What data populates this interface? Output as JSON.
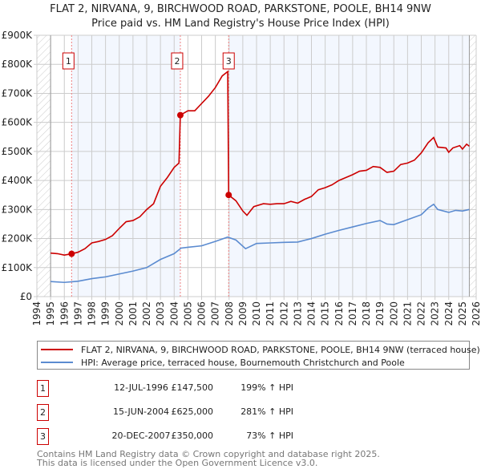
{
  "chart_data": {
    "type": "line",
    "title": "FLAT 2, NIRVANA, 9, BIRCHWOOD ROAD, PARKSTONE, POOLE, BH14 9NW",
    "subtitle": "Price paid vs. HM Land Registry's House Price Index (HPI)",
    "xlim": [
      1994,
      2026
    ],
    "ylim": [
      0,
      900000
    ],
    "x_ticks": [
      "1994",
      "1995",
      "1996",
      "1997",
      "1998",
      "1999",
      "2000",
      "2001",
      "2002",
      "2003",
      "2004",
      "2005",
      "2006",
      "2007",
      "2008",
      "2009",
      "2010",
      "2011",
      "2012",
      "2013",
      "2014",
      "2015",
      "2016",
      "2017",
      "2018",
      "2019",
      "2020",
      "2021",
      "2022",
      "2023",
      "2024",
      "2025",
      "2026"
    ],
    "y_ticks": [
      {
        "v": 0,
        "label": "£0"
      },
      {
        "v": 100000,
        "label": "£100K"
      },
      {
        "v": 200000,
        "label": "£200K"
      },
      {
        "v": 300000,
        "label": "£300K"
      },
      {
        "v": 400000,
        "label": "£400K"
      },
      {
        "v": 500000,
        "label": "£500K"
      },
      {
        "v": 600000,
        "label": "£600K"
      },
      {
        "v": 700000,
        "label": "£700K"
      },
      {
        "v": 800000,
        "label": "£800K"
      },
      {
        "v": 900000,
        "label": "£900K"
      }
    ],
    "grid": true,
    "series": [
      {
        "name": "FLAT 2, NIRVANA, 9, BIRCHWOOD ROAD, PARKSTONE, POOLE, BH14 9NW (terraced house)",
        "color": "#cc0000",
        "x": [
          1995,
          1995.5,
          1996,
          1996.53,
          1997,
          1997.5,
          1998,
          1998.5,
          1999,
          1999.5,
          2000,
          2000.5,
          2001,
          2001.5,
          2002,
          2002.5,
          2003,
          2003.5,
          2004,
          2004.35,
          2004.45,
          2005,
          2005.5,
          2006,
          2006.5,
          2007,
          2007.5,
          2007.9,
          2007.97,
          2008.5,
          2009,
          2009.3,
          2009.8,
          2010.5,
          2011,
          2011.5,
          2012,
          2012.5,
          2013,
          2013.5,
          2014,
          2014.5,
          2015,
          2015.5,
          2016,
          2016.5,
          2017,
          2017.5,
          2018,
          2018.5,
          2019,
          2019.5,
          2020,
          2020.5,
          2021,
          2021.5,
          2022,
          2022.5,
          2022.9,
          2023.2,
          2023.8,
          2024,
          2024.3,
          2024.8,
          2025,
          2025.3,
          2025.5
        ],
        "y": [
          150000,
          148000,
          143000,
          147500,
          153000,
          165000,
          185000,
          190000,
          197000,
          210000,
          235000,
          258000,
          262000,
          275000,
          300000,
          320000,
          380000,
          410000,
          445000,
          460000,
          625000,
          640000,
          640000,
          665000,
          690000,
          720000,
          760000,
          775000,
          350000,
          330000,
          295000,
          280000,
          310000,
          320000,
          318000,
          320000,
          320000,
          328000,
          322000,
          335000,
          345000,
          368000,
          375000,
          385000,
          400000,
          410000,
          420000,
          432000,
          435000,
          448000,
          445000,
          428000,
          432000,
          455000,
          460000,
          470000,
          495000,
          530000,
          548000,
          515000,
          512000,
          497000,
          512000,
          520000,
          508000,
          525000,
          518000
        ]
      },
      {
        "name": "HPI: Average price, terraced house, Bournemouth Christchurch and Poole",
        "color": "#5b8bd0",
        "x": [
          1995,
          1996,
          1997,
          1998,
          1999,
          2000,
          2001,
          2002,
          2003,
          2004,
          2004.5,
          2005,
          2006,
          2007,
          2007.9,
          2008.5,
          2009.2,
          2010,
          2011,
          2012,
          2013,
          2014,
          2015,
          2016,
          2017,
          2018,
          2019,
          2019.5,
          2020,
          2021,
          2022,
          2022.5,
          2022.9,
          2023.2,
          2024,
          2024.5,
          2025,
          2025.5
        ],
        "y": [
          52000,
          49000,
          53000,
          62000,
          68000,
          78000,
          88000,
          100000,
          128000,
          148000,
          167000,
          170000,
          175000,
          190000,
          205000,
          195000,
          165000,
          183000,
          185000,
          187000,
          188000,
          200000,
          215000,
          228000,
          240000,
          252000,
          262000,
          250000,
          248000,
          265000,
          282000,
          305000,
          318000,
          300000,
          290000,
          297000,
          295000,
          300000
        ]
      }
    ],
    "sales": [
      {
        "id": "1",
        "x": 1996.53,
        "y": 147500,
        "date": "12-JUL-1996",
        "price": "£147,500",
        "hpi": "199% ↑ HPI"
      },
      {
        "id": "2",
        "x": 2004.45,
        "y": 625000,
        "date": "15-JUN-2004",
        "price": "£625,000",
        "hpi": "281% ↑ HPI"
      },
      {
        "id": "3",
        "x": 2007.97,
        "y": 350000,
        "date": "20-DEC-2007",
        "price": "£350,000",
        "hpi": "73% ↑ HPI"
      }
    ],
    "legend_position": "below"
  },
  "footer": {
    "line1": "Contains HM Land Registry data © Crown copyright and database right 2025.",
    "line2": "This data is licensed under the Open Government Licence v3.0."
  }
}
